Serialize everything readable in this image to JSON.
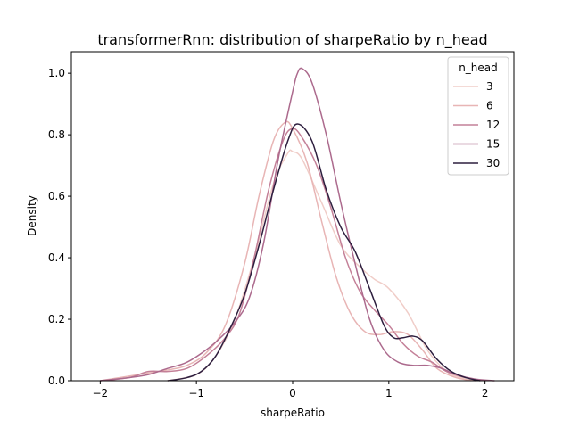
{
  "chart_data": {
    "type": "line",
    "title": "transformerRnn: distribution of sharpeRatio by n_head",
    "xlabel": "sharpeRatio",
    "ylabel": "Density",
    "xlim": [
      -2.3,
      2.3
    ],
    "ylim": [
      0.0,
      1.07
    ],
    "x_ticks": [
      -2,
      -1,
      0,
      1,
      2
    ],
    "x_tick_labels": [
      "−2",
      "−1",
      "0",
      "1",
      "2"
    ],
    "y_ticks": [
      0.0,
      0.2,
      0.4,
      0.6,
      0.8,
      1.0
    ],
    "y_tick_labels": [
      "0.0",
      "0.2",
      "0.4",
      "0.6",
      "0.8",
      "1.0"
    ],
    "grid": false,
    "legend": {
      "title": "n_head",
      "position": "top-right"
    },
    "series": [
      {
        "name": "3",
        "color": "#f0cdc8",
        "x": [
          -1.3,
          -1.0,
          -0.8,
          -0.6,
          -0.4,
          -0.2,
          -0.05,
          0.0,
          0.1,
          0.3,
          0.5,
          0.7,
          0.85,
          1.0,
          1.2,
          1.4,
          1.6,
          1.75,
          1.85
        ],
        "y": [
          0.0,
          0.02,
          0.08,
          0.2,
          0.4,
          0.64,
          0.74,
          0.745,
          0.72,
          0.58,
          0.44,
          0.37,
          0.33,
          0.3,
          0.22,
          0.1,
          0.03,
          0.01,
          0.0
        ]
      },
      {
        "name": "6",
        "color": "#e8b5b5",
        "x": [
          -2.0,
          -1.6,
          -1.3,
          -1.1,
          -0.9,
          -0.7,
          -0.5,
          -0.35,
          -0.2,
          -0.08,
          0.0,
          0.15,
          0.3,
          0.45,
          0.6,
          0.75,
          0.9,
          1.05,
          1.2,
          1.35,
          1.5,
          1.7,
          1.9
        ],
        "y": [
          0.0,
          0.02,
          0.035,
          0.05,
          0.09,
          0.18,
          0.38,
          0.6,
          0.78,
          0.84,
          0.82,
          0.71,
          0.52,
          0.34,
          0.22,
          0.16,
          0.15,
          0.16,
          0.15,
          0.1,
          0.04,
          0.01,
          0.0
        ]
      },
      {
        "name": "12",
        "color": "#c48098",
        "x": [
          -2.0,
          -1.7,
          -1.5,
          -1.3,
          -1.1,
          -0.9,
          -0.7,
          -0.55,
          -0.4,
          -0.25,
          -0.1,
          0.0,
          0.1,
          0.25,
          0.4,
          0.55,
          0.7,
          0.85,
          1.0,
          1.15,
          1.3,
          1.45,
          1.6,
          1.8,
          2.0
        ],
        "y": [
          0.0,
          0.01,
          0.03,
          0.03,
          0.04,
          0.08,
          0.14,
          0.22,
          0.4,
          0.62,
          0.78,
          0.82,
          0.79,
          0.7,
          0.56,
          0.4,
          0.29,
          0.23,
          0.18,
          0.12,
          0.08,
          0.06,
          0.03,
          0.01,
          0.0
        ]
      },
      {
        "name": "15",
        "color": "#ac6a8d",
        "x": [
          -2.0,
          -1.7,
          -1.5,
          -1.3,
          -1.1,
          -0.9,
          -0.75,
          -0.6,
          -0.45,
          -0.3,
          -0.15,
          0.0,
          0.05,
          0.1,
          0.2,
          0.35,
          0.5,
          0.65,
          0.8,
          0.95,
          1.1,
          1.25,
          1.4,
          1.55,
          1.7,
          1.9,
          2.1
        ],
        "y": [
          0.0,
          0.01,
          0.02,
          0.04,
          0.06,
          0.1,
          0.14,
          0.19,
          0.27,
          0.45,
          0.72,
          0.94,
          1.0,
          1.015,
          0.97,
          0.8,
          0.58,
          0.38,
          0.2,
          0.1,
          0.06,
          0.05,
          0.05,
          0.04,
          0.02,
          0.005,
          0.0
        ]
      },
      {
        "name": "30",
        "color": "#2d1e3e",
        "x": [
          -1.3,
          -1.1,
          -0.95,
          -0.8,
          -0.65,
          -0.5,
          -0.35,
          -0.2,
          -0.05,
          0.05,
          0.2,
          0.35,
          0.5,
          0.65,
          0.8,
          0.95,
          1.05,
          1.15,
          1.25,
          1.35,
          1.5,
          1.65,
          1.8,
          1.95
        ],
        "y": [
          0.0,
          0.01,
          0.03,
          0.08,
          0.17,
          0.28,
          0.44,
          0.62,
          0.78,
          0.835,
          0.78,
          0.62,
          0.5,
          0.42,
          0.3,
          0.18,
          0.14,
          0.14,
          0.145,
          0.13,
          0.07,
          0.03,
          0.01,
          0.0
        ]
      }
    ]
  }
}
